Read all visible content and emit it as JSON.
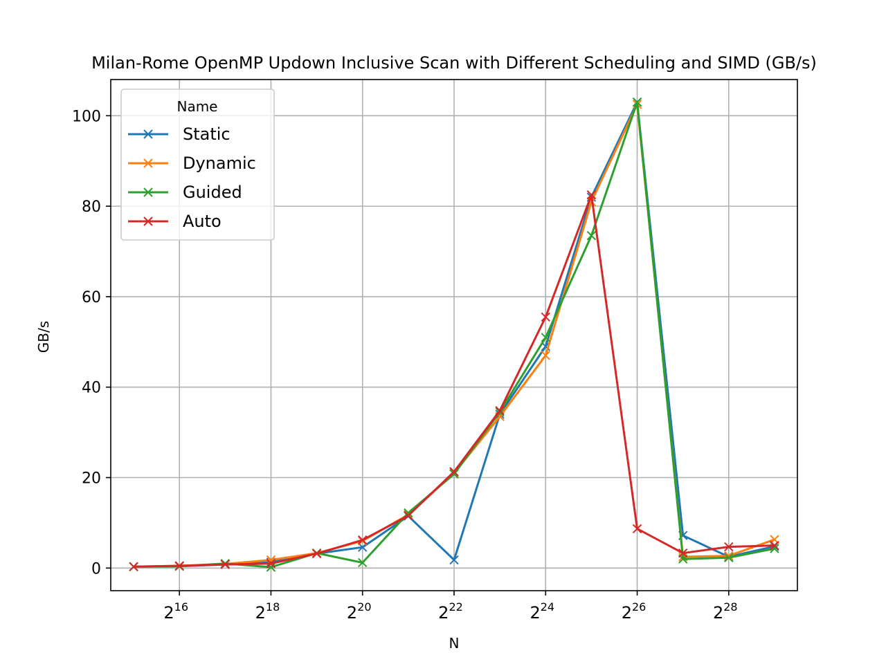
{
  "chart_data": {
    "type": "line",
    "title": "Milan-Rome OpenMP Updown Inclusive Scan with Different Scheduling and SIMD (GB/s)",
    "xlabel": "N",
    "ylabel": "GB/s",
    "xscale": "log2",
    "x_exponents": [
      15,
      16,
      17,
      18,
      19,
      20,
      21,
      22,
      23,
      24,
      25,
      26,
      27,
      28,
      29
    ],
    "xticks": [
      {
        "base": "2",
        "exp": "16"
      },
      {
        "base": "2",
        "exp": "18"
      },
      {
        "base": "2",
        "exp": "20"
      },
      {
        "base": "2",
        "exp": "22"
      },
      {
        "base": "2",
        "exp": "24"
      },
      {
        "base": "2",
        "exp": "26"
      },
      {
        "base": "2",
        "exp": "28"
      }
    ],
    "yticks": [
      "0",
      "20",
      "40",
      "60",
      "80",
      "100"
    ],
    "ylim": [
      -5,
      108
    ],
    "grid": true,
    "legend_title": "Name",
    "legend_position": "upper-left",
    "marker": "x",
    "series": [
      {
        "name": "Static",
        "color": "#1f77b4",
        "values": [
          0.3,
          0.4,
          0.8,
          1.3,
          3.2,
          4.6,
          11.5,
          1.8,
          34.0,
          49.0,
          82.0,
          103.0,
          7.2,
          2.5,
          4.8
        ]
      },
      {
        "name": "Dynamic",
        "color": "#ff7f0e",
        "values": [
          0.3,
          0.5,
          0.9,
          1.8,
          3.3,
          6.0,
          11.8,
          21.0,
          33.5,
          47.0,
          81.0,
          102.5,
          2.5,
          2.7,
          6.3
        ]
      },
      {
        "name": "Guided",
        "color": "#2ca02c",
        "values": [
          0.3,
          0.4,
          1.0,
          0.2,
          3.3,
          1.2,
          12.2,
          20.8,
          34.5,
          51.0,
          73.5,
          103.0,
          2.0,
          2.3,
          4.3
        ]
      },
      {
        "name": "Auto",
        "color": "#d62728",
        "values": [
          0.3,
          0.5,
          0.8,
          1.0,
          3.2,
          6.2,
          11.6,
          21.3,
          34.8,
          55.5,
          82.5,
          8.7,
          3.3,
          4.7,
          5.0
        ]
      }
    ]
  }
}
